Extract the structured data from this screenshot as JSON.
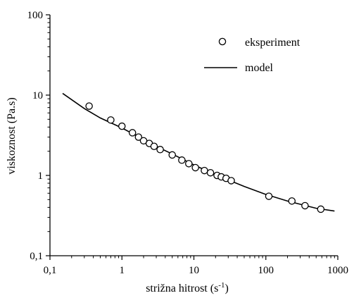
{
  "chart_data": {
    "type": "scatter",
    "xscale": "log",
    "yscale": "log",
    "xlim": [
      0.1,
      1000
    ],
    "ylim": [
      0.1,
      100
    ],
    "xlabel": "strižna hitrost (s",
    "xlabel_sup": "-1",
    "xlabel_close": ")",
    "ylabel": "viskoznost (Pa.s)",
    "x_ticks": [
      0.1,
      1,
      10,
      100,
      1000
    ],
    "x_tick_labels": [
      "0,1",
      "1",
      "10",
      "100",
      "1000"
    ],
    "y_ticks": [
      0.1,
      1,
      10,
      100
    ],
    "y_tick_labels": [
      "0,1",
      "1",
      "10",
      "100"
    ],
    "grid": false,
    "legend_position": "top-right",
    "series": [
      {
        "name": "eksperiment",
        "kind": "markers",
        "marker": "open-circle",
        "x": [
          0.35,
          0.7,
          1.0,
          1.4,
          1.7,
          2.0,
          2.4,
          2.8,
          3.4,
          5.0,
          6.8,
          8.5,
          10.5,
          14.0,
          17.0,
          21.0,
          24.0,
          28.0,
          33.0,
          110.0,
          230.0,
          350.0,
          580.0
        ],
        "y": [
          7.3,
          4.9,
          4.1,
          3.4,
          3.0,
          2.7,
          2.5,
          2.3,
          2.1,
          1.8,
          1.55,
          1.4,
          1.25,
          1.15,
          1.08,
          1.0,
          0.96,
          0.92,
          0.86,
          0.55,
          0.48,
          0.42,
          0.38
        ]
      },
      {
        "name": "model",
        "kind": "line",
        "x": [
          0.15,
          0.3,
          0.5,
          1.0,
          2.0,
          3.0,
          5.0,
          10.0,
          20.0,
          30.0,
          50.0,
          100.0,
          200.0,
          500.0,
          900.0
        ],
        "y": [
          10.5,
          6.8,
          5.2,
          3.9,
          2.8,
          2.3,
          1.85,
          1.35,
          1.02,
          0.88,
          0.73,
          0.58,
          0.48,
          0.39,
          0.36
        ]
      }
    ]
  }
}
